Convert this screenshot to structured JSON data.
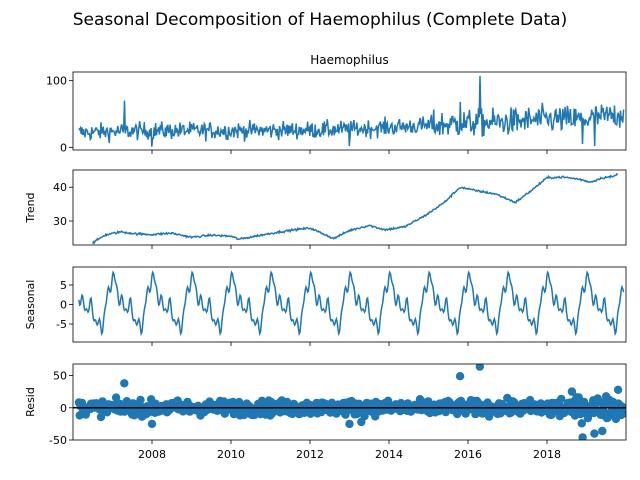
{
  "chart_data": {
    "type": "line",
    "title": "Seasonal Decomposition of Haemophilus (Complete Data)",
    "xlim": [
      2006.0,
      2020.0
    ],
    "x_ticks": [
      "2008",
      "2010",
      "2012",
      "2014",
      "2016",
      "2018"
    ],
    "x_tick_values": [
      2008,
      2010,
      2012,
      2014,
      2016,
      2018
    ],
    "line_color": "#1f77b4",
    "panels": [
      {
        "key": "observed",
        "title": "Haemophilus",
        "ylabel": "",
        "ylim": [
          -4,
          113
        ],
        "y_ticks": [
          0,
          100
        ],
        "mode": "line",
        "baseline": 28,
        "noise": 6.5,
        "knots": [
          [
            2006.1,
            22
          ],
          [
            2008,
            25
          ],
          [
            2010,
            25
          ],
          [
            2012,
            26
          ],
          [
            2013,
            27
          ],
          [
            2014,
            30
          ],
          [
            2015,
            33
          ],
          [
            2016,
            36
          ],
          [
            2017,
            38
          ],
          [
            2018,
            42
          ],
          [
            2019,
            42
          ],
          [
            2019.9,
            50
          ]
        ],
        "spikes": [
          [
            2007.3,
            70
          ],
          [
            2015.8,
            68
          ],
          [
            2016.3,
            107
          ],
          [
            2018.9,
            5
          ],
          [
            2019.2,
            2
          ],
          [
            2013.0,
            2
          ],
          [
            2008.0,
            1
          ],
          [
            2019.6,
            60
          ]
        ]
      },
      {
        "key": "trend",
        "title": "",
        "ylabel": "Trend",
        "ylim": [
          22.9,
          45.1
        ],
        "y_ticks": [
          30,
          40
        ],
        "mode": "line",
        "knots": [
          [
            2006.5,
            23.5
          ],
          [
            2006.8,
            25.8
          ],
          [
            2007.2,
            26.8
          ],
          [
            2007.6,
            26.2
          ],
          [
            2008,
            26
          ],
          [
            2008.5,
            26.4
          ],
          [
            2009,
            25.2
          ],
          [
            2009.5,
            25.8
          ],
          [
            2010,
            25.5
          ],
          [
            2010.2,
            24.6
          ],
          [
            2010.7,
            25.7
          ],
          [
            2011.2,
            26.7
          ],
          [
            2011.6,
            27.4
          ],
          [
            2012,
            27.9
          ],
          [
            2012.3,
            26.4
          ],
          [
            2012.6,
            24.8
          ],
          [
            2013,
            27.2
          ],
          [
            2013.5,
            28.7
          ],
          [
            2013.9,
            27.4
          ],
          [
            2014.4,
            28.3
          ],
          [
            2014.9,
            31.5
          ],
          [
            2015.4,
            35.5
          ],
          [
            2015.8,
            40
          ],
          [
            2016.2,
            39
          ],
          [
            2016.7,
            38
          ],
          [
            2017.2,
            35.5
          ],
          [
            2017.6,
            39
          ],
          [
            2018,
            42.8
          ],
          [
            2018.4,
            43
          ],
          [
            2018.8,
            42.4
          ],
          [
            2019.1,
            41.5
          ],
          [
            2019.4,
            42.8
          ],
          [
            2019.7,
            43.2
          ],
          [
            2019.8,
            44
          ]
        ]
      },
      {
        "key": "seasonal",
        "title": "",
        "ylabel": "Seasonal",
        "ylim": [
          -9.6,
          9.6
        ],
        "y_ticks": [
          -5,
          0,
          5
        ],
        "mode": "seasonal",
        "amplitude": 8.5
      },
      {
        "key": "resid",
        "title": "",
        "ylabel": "Resid",
        "ylim": [
          -50,
          68
        ],
        "y_ticks": [
          -50,
          0,
          50
        ],
        "mode": "scatter",
        "zero_line": true,
        "outliers": [
          [
            2007.3,
            38
          ],
          [
            2008.0,
            -25
          ],
          [
            2013.0,
            -25
          ],
          [
            2013.3,
            -22
          ],
          [
            2015.8,
            49
          ],
          [
            2016.3,
            64
          ],
          [
            2018.9,
            -46
          ],
          [
            2019.2,
            -40
          ],
          [
            2019.4,
            -36
          ],
          [
            2019.8,
            28
          ]
        ]
      }
    ]
  }
}
